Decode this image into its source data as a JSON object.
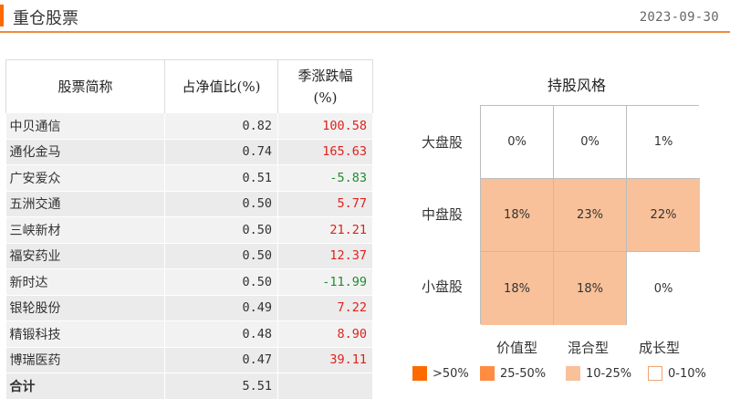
{
  "header": {
    "title": "重仓股票",
    "date": "2023-09-30"
  },
  "table": {
    "columns": [
      "股票简称",
      "占净值比(%)",
      "季涨跌幅",
      "(%)"
    ],
    "rows": [
      {
        "name": "中贝通信",
        "weight": "0.82",
        "change": "100.58",
        "dir": "pos"
      },
      {
        "name": "通化金马",
        "weight": "0.74",
        "change": "165.63",
        "dir": "pos"
      },
      {
        "name": "广安爱众",
        "weight": "0.51",
        "change": "-5.83",
        "dir": "neg"
      },
      {
        "name": "五洲交通",
        "weight": "0.50",
        "change": "5.77",
        "dir": "pos"
      },
      {
        "name": "三峡新材",
        "weight": "0.50",
        "change": "21.21",
        "dir": "pos"
      },
      {
        "name": "福安药业",
        "weight": "0.50",
        "change": "12.37",
        "dir": "pos"
      },
      {
        "name": "新时达",
        "weight": "0.50",
        "change": "-11.99",
        "dir": "neg"
      },
      {
        "name": "银轮股份",
        "weight": "0.49",
        "change": "7.22",
        "dir": "pos"
      },
      {
        "name": "精锻科技",
        "weight": "0.48",
        "change": "8.90",
        "dir": "pos"
      },
      {
        "name": "博瑞医药",
        "weight": "0.47",
        "change": "39.11",
        "dir": "pos"
      }
    ],
    "total": {
      "label": "合计",
      "weight": "5.51"
    }
  },
  "style_box": {
    "title": "持股风格",
    "row_labels": [
      "大盘股",
      "中盘股",
      "小盘股"
    ],
    "col_labels": [
      "价值型",
      "混合型",
      "成长型"
    ],
    "cells": [
      [
        "0%",
        "0%",
        "1%"
      ],
      [
        "18%",
        "23%",
        "22%"
      ],
      [
        "18%",
        "18%",
        "0%"
      ]
    ],
    "levels": [
      [
        "low",
        "low",
        "low"
      ],
      [
        "mid",
        "mid",
        "mid"
      ],
      [
        "mid",
        "mid",
        "low"
      ]
    ],
    "legend": [
      {
        "label": ">50%",
        "color": "#ff6a00"
      },
      {
        "label": "25-50%",
        "color": "#ff8c40"
      },
      {
        "label": "10-25%",
        "color": "#f8c19a"
      },
      {
        "label": "0-10%",
        "color": "#ffffff"
      }
    ]
  }
}
